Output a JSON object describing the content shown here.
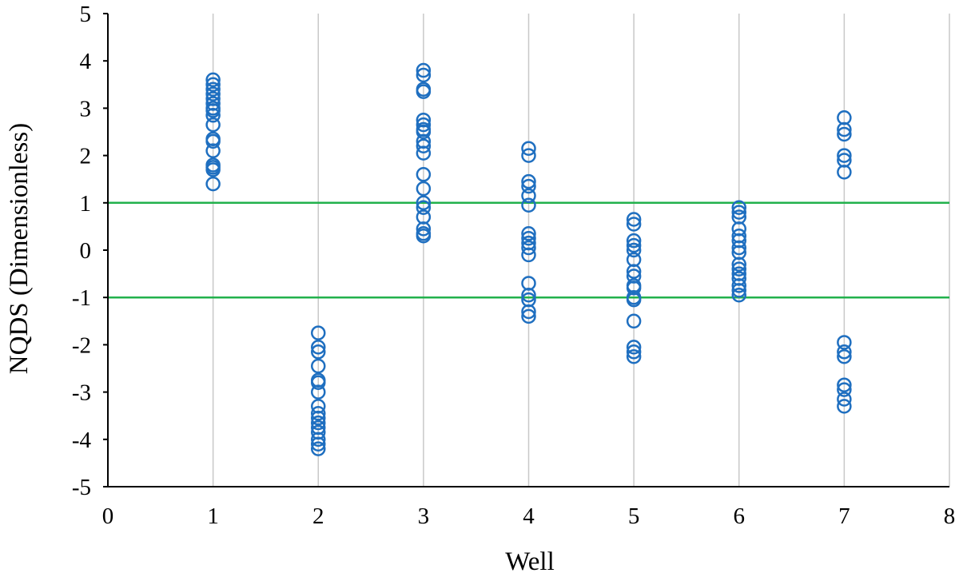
{
  "chart_data": {
    "type": "scatter",
    "title": "",
    "xlabel": "Well",
    "ylabel": "NQDS (Dimensionless)",
    "xlim": [
      0,
      8
    ],
    "ylim": [
      -5,
      5
    ],
    "xticks": [
      0,
      1,
      2,
      3,
      4,
      5,
      6,
      7,
      8
    ],
    "yticks": [
      -5,
      -4,
      -3,
      -2,
      -1,
      0,
      1,
      2,
      3,
      4,
      5
    ],
    "grid": "vertical",
    "legend": "none",
    "marker": "open-circle",
    "colors": {
      "points": "#1f6fc0",
      "reference_lines": "#22b14c"
    },
    "reference_lines": [
      1,
      -1
    ],
    "series": [
      {
        "points": [
          [
            1,
            3.6
          ],
          [
            1,
            3.5
          ],
          [
            1,
            3.4
          ],
          [
            1,
            3.3
          ],
          [
            1,
            3.2
          ],
          [
            1,
            3.1
          ],
          [
            1,
            3.0
          ],
          [
            1,
            2.95
          ],
          [
            1,
            2.85
          ],
          [
            1,
            2.65
          ],
          [
            1,
            2.35
          ],
          [
            1,
            2.3
          ],
          [
            1,
            2.1
          ],
          [
            1,
            1.8
          ],
          [
            1,
            1.75
          ],
          [
            1,
            1.7
          ],
          [
            1,
            1.4
          ],
          [
            2,
            -1.75
          ],
          [
            2,
            -2.05
          ],
          [
            2,
            -2.15
          ],
          [
            2,
            -2.45
          ],
          [
            2,
            -2.75
          ],
          [
            2,
            -2.8
          ],
          [
            2,
            -3.0
          ],
          [
            2,
            -3.3
          ],
          [
            2,
            -3.45
          ],
          [
            2,
            -3.55
          ],
          [
            2,
            -3.65
          ],
          [
            2,
            -3.75
          ],
          [
            2,
            -3.85
          ],
          [
            2,
            -4.0
          ],
          [
            2,
            -4.1
          ],
          [
            2,
            -4.2
          ],
          [
            3,
            3.8
          ],
          [
            3,
            3.7
          ],
          [
            3,
            3.4
          ],
          [
            3,
            3.35
          ],
          [
            3,
            2.75
          ],
          [
            3,
            2.65
          ],
          [
            3,
            2.55
          ],
          [
            3,
            2.5
          ],
          [
            3,
            2.3
          ],
          [
            3,
            2.2
          ],
          [
            3,
            2.05
          ],
          [
            3,
            1.6
          ],
          [
            3,
            1.3
          ],
          [
            3,
            1.0
          ],
          [
            3,
            0.9
          ],
          [
            3,
            0.7
          ],
          [
            3,
            0.45
          ],
          [
            3,
            0.35
          ],
          [
            3,
            0.3
          ],
          [
            4,
            2.15
          ],
          [
            4,
            2.0
          ],
          [
            4,
            1.45
          ],
          [
            4,
            1.35
          ],
          [
            4,
            1.15
          ],
          [
            4,
            0.95
          ],
          [
            4,
            0.35
          ],
          [
            4,
            0.25
          ],
          [
            4,
            0.15
          ],
          [
            4,
            0.05
          ],
          [
            4,
            -0.1
          ],
          [
            4,
            -0.7
          ],
          [
            4,
            -0.95
          ],
          [
            4,
            -1.05
          ],
          [
            4,
            -1.3
          ],
          [
            4,
            -1.4
          ],
          [
            5,
            0.65
          ],
          [
            5,
            0.55
          ],
          [
            5,
            0.2
          ],
          [
            5,
            0.1
          ],
          [
            5,
            0.0
          ],
          [
            5,
            -0.2
          ],
          [
            5,
            -0.45
          ],
          [
            5,
            -0.55
          ],
          [
            5,
            -0.75
          ],
          [
            5,
            -0.8
          ],
          [
            5,
            -1.0
          ],
          [
            5,
            -1.05
          ],
          [
            5,
            -1.5
          ],
          [
            5,
            -2.05
          ],
          [
            5,
            -2.15
          ],
          [
            5,
            -2.25
          ],
          [
            6,
            0.9
          ],
          [
            6,
            0.8
          ],
          [
            6,
            0.7
          ],
          [
            6,
            0.45
          ],
          [
            6,
            0.3
          ],
          [
            6,
            0.2
          ],
          [
            6,
            0.05
          ],
          [
            6,
            -0.05
          ],
          [
            6,
            -0.3
          ],
          [
            6,
            -0.4
          ],
          [
            6,
            -0.5
          ],
          [
            6,
            -0.6
          ],
          [
            6,
            -0.75
          ],
          [
            6,
            -0.85
          ],
          [
            6,
            -0.95
          ],
          [
            7,
            2.8
          ],
          [
            7,
            2.55
          ],
          [
            7,
            2.45
          ],
          [
            7,
            2.0
          ],
          [
            7,
            1.9
          ],
          [
            7,
            1.65
          ],
          [
            7,
            -1.95
          ],
          [
            7,
            -2.15
          ],
          [
            7,
            -2.25
          ],
          [
            7,
            -2.85
          ],
          [
            7,
            -2.95
          ],
          [
            7,
            -3.15
          ],
          [
            7,
            -3.3
          ]
        ]
      }
    ]
  }
}
